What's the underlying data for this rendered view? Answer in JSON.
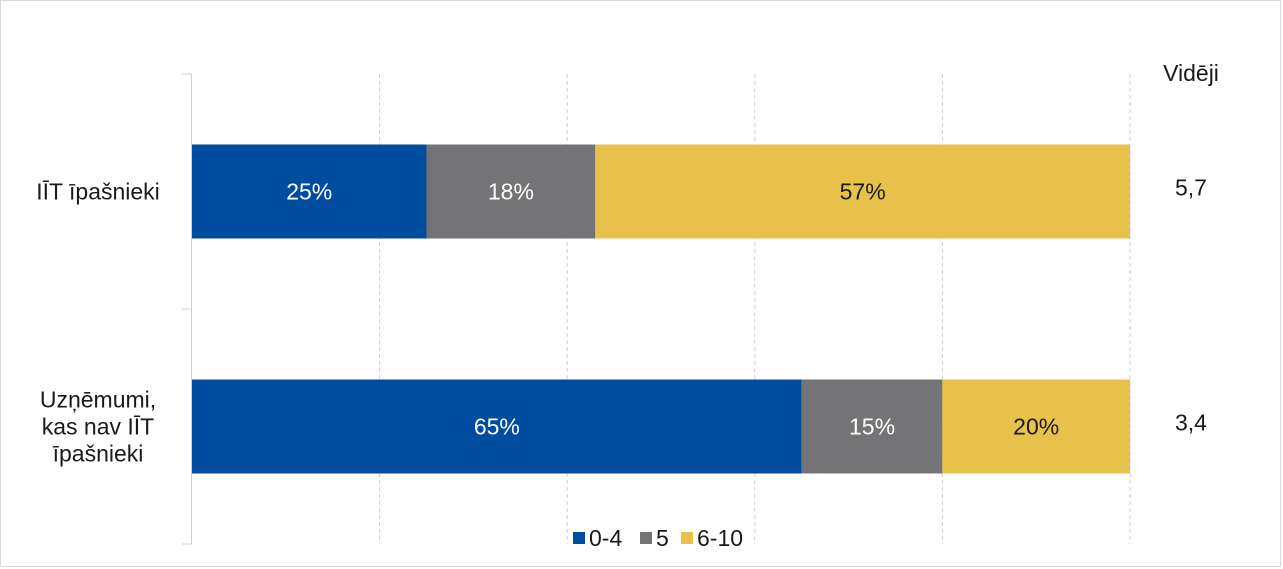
{
  "chart_data": {
    "type": "bar",
    "orientation": "horizontal",
    "stacked": true,
    "title": "",
    "xlabel": "",
    "ylabel": "",
    "xlim": [
      0,
      100
    ],
    "grid": true,
    "legend_position": "bottom",
    "categories": [
      "IĪT īpašnieki",
      "Uzņēmumi, kas nav IĪT īpašnieki"
    ],
    "series": [
      {
        "name": "0-4",
        "color": "#004C9F",
        "label_color": "#ffffff",
        "values": [
          25,
          65
        ],
        "labels": [
          "25%",
          "65%"
        ]
      },
      {
        "name": "5",
        "color": "#747476",
        "label_color": "#ffffff",
        "values": [
          18,
          15
        ],
        "labels": [
          "18%",
          "15%"
        ]
      },
      {
        "name": "6-10",
        "color": "#E8C14B",
        "label_color": "#1a1a1a",
        "values": [
          57,
          20
        ],
        "labels": [
          "57%",
          "20%"
        ]
      }
    ],
    "average": {
      "header": "Vidēji",
      "values": [
        "5,7",
        "3,4"
      ]
    }
  }
}
